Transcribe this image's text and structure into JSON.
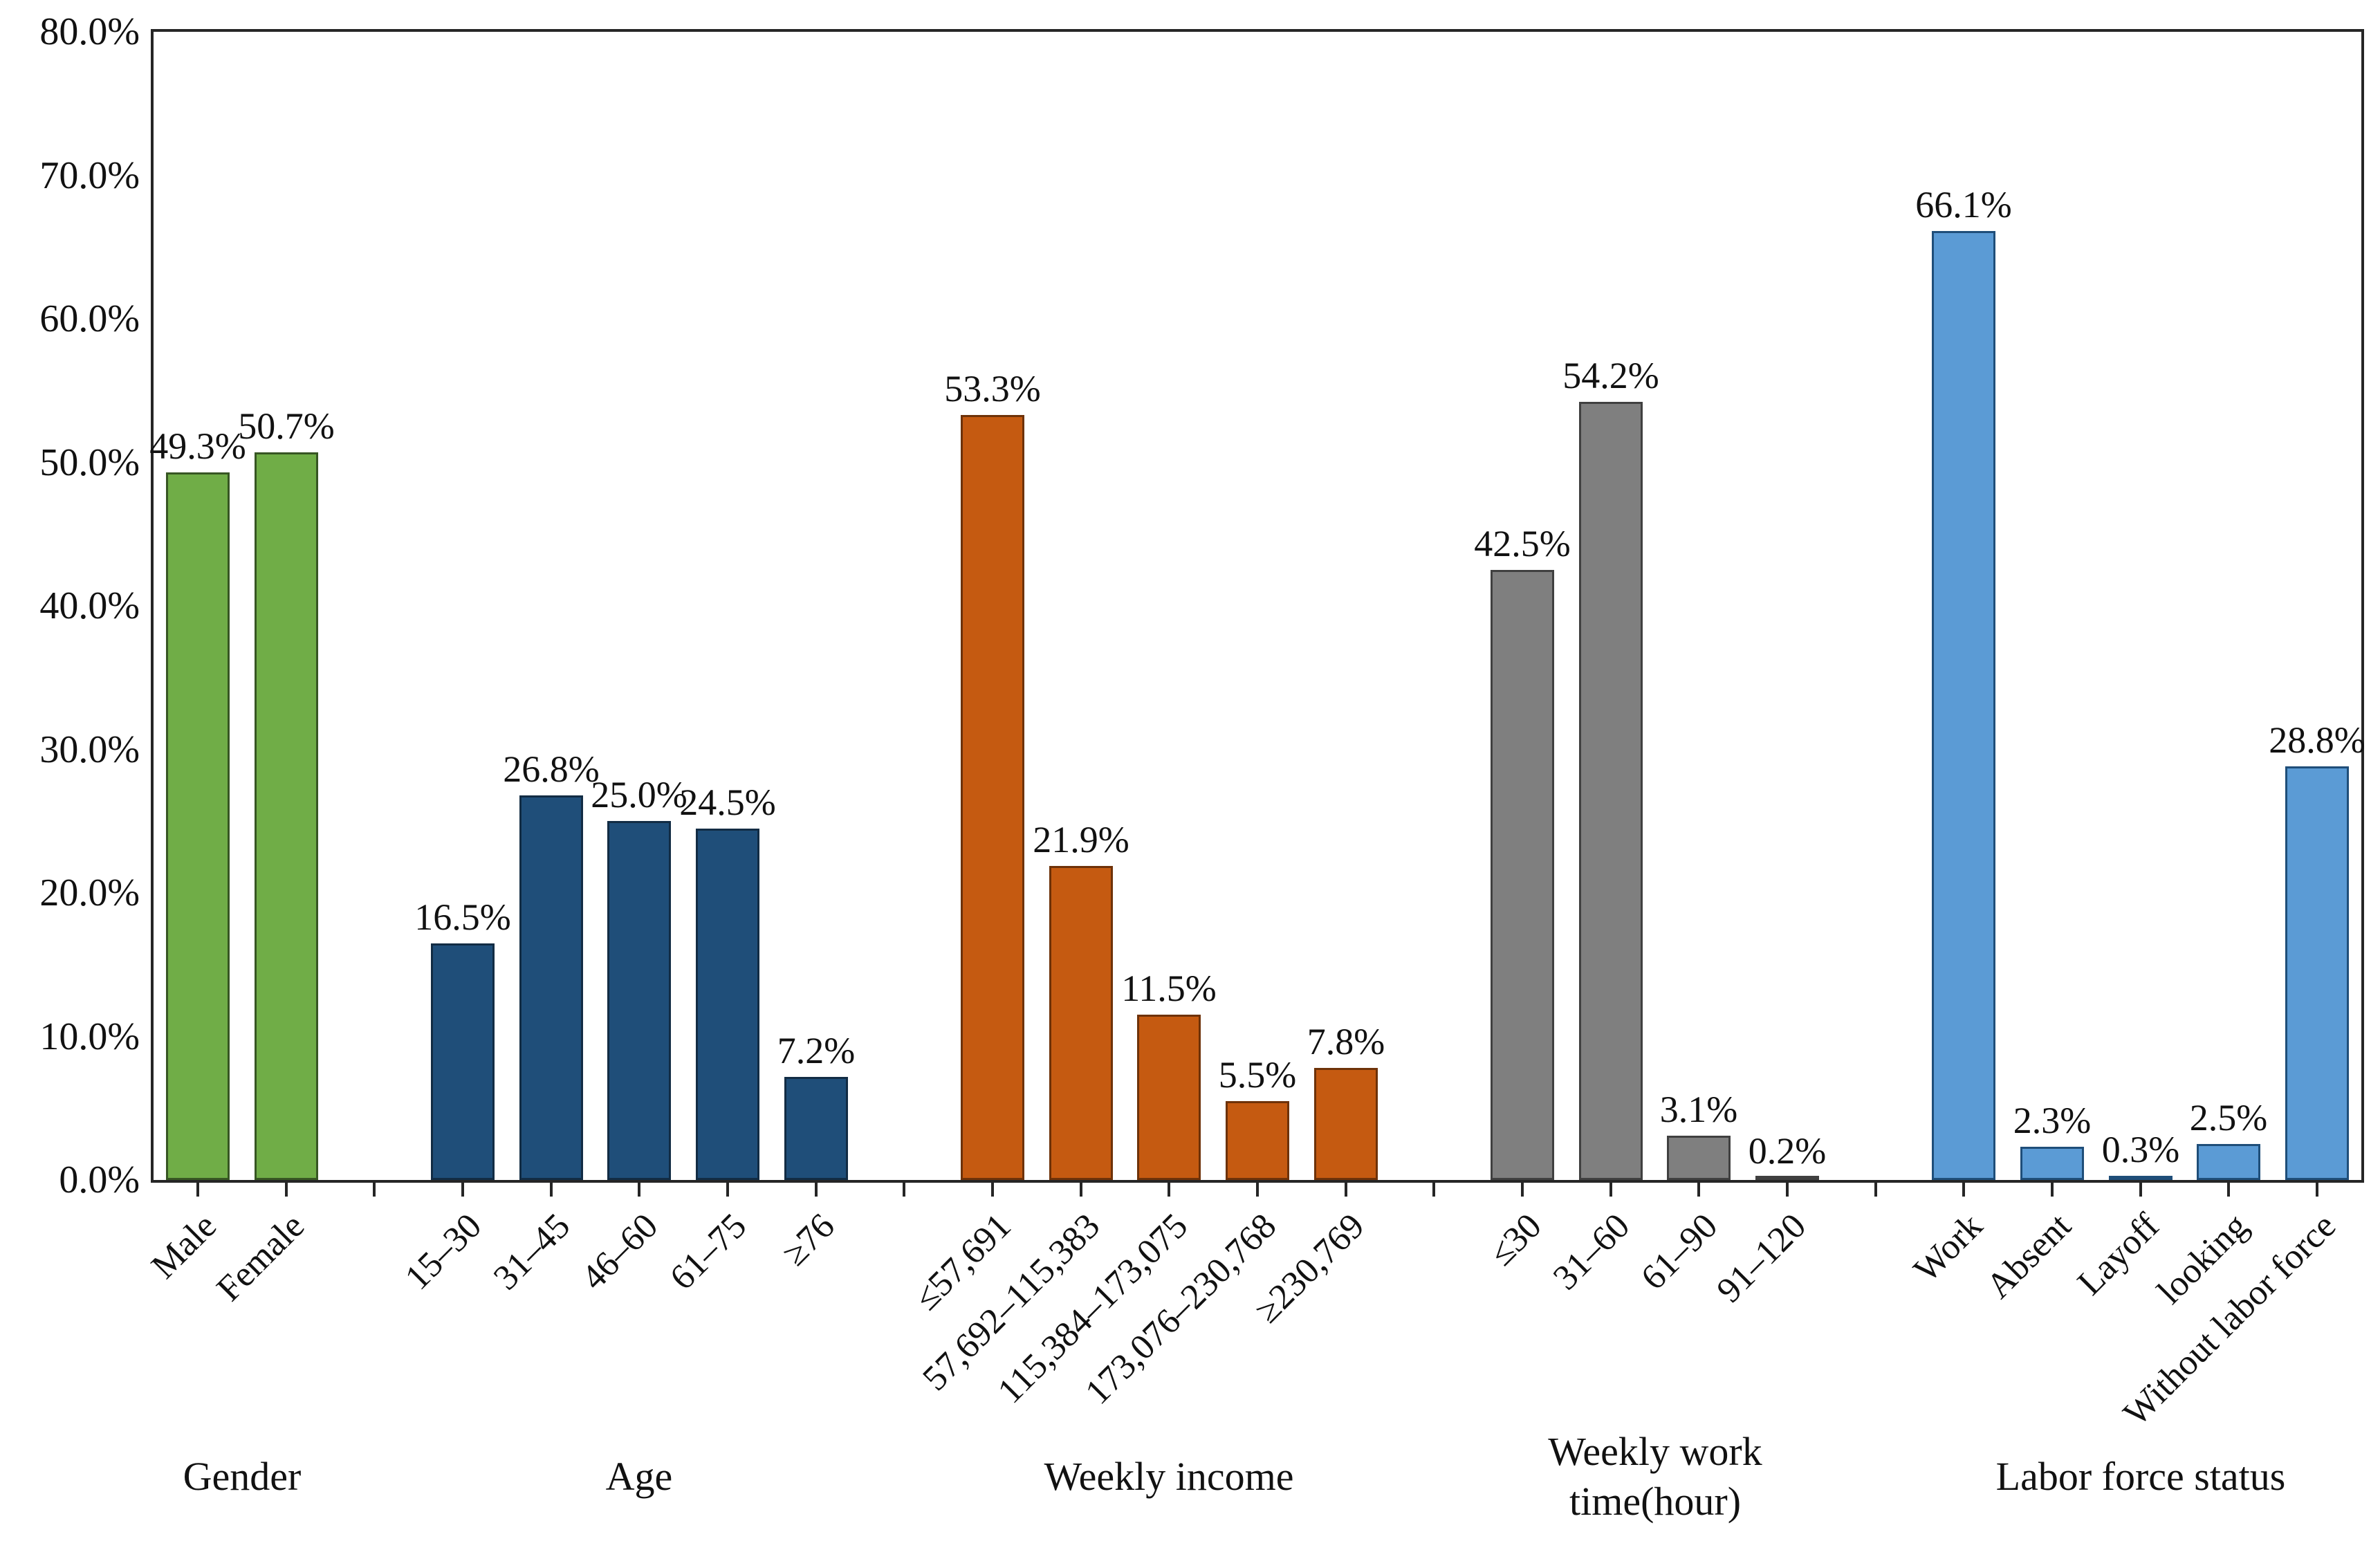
{
  "chart_data": {
    "type": "bar",
    "title": "",
    "xlabel": "",
    "ylabel": "",
    "ylim": [
      0,
      80
    ],
    "ytick_step": 10,
    "ytick_labels": [
      "0.0%",
      "10.0%",
      "20.0%",
      "30.0%",
      "40.0%",
      "50.0%",
      "60.0%",
      "70.0%",
      "80.0%"
    ],
    "grid": false,
    "legend": "none",
    "bar_label_format": "percent_one_decimal",
    "groups": [
      {
        "label": "Gender",
        "color": "#70AD47",
        "border_color": "#375623",
        "categories": [
          "Male",
          "Female"
        ],
        "values": [
          49.3,
          50.7
        ],
        "value_labels": [
          "49.3%",
          "50.7%"
        ]
      },
      {
        "label": "Age",
        "color": "#1F4E79",
        "border_color": "#122C44",
        "categories": [
          "15–30",
          "31–45",
          "46–60",
          "61–75",
          "≥76"
        ],
        "values": [
          16.5,
          26.8,
          25.0,
          24.5,
          7.2
        ],
        "value_labels": [
          "16.5%",
          "26.8%",
          "25.0%",
          "24.5%",
          "7.2%"
        ]
      },
      {
        "label": "Weekly income",
        "color": "#C55A11",
        "border_color": "#6E3209",
        "categories": [
          "≤57,691",
          "57,692–115,383",
          "115,384–173,075",
          "173,076–230,768",
          "≥230,769"
        ],
        "values": [
          53.3,
          21.9,
          11.5,
          5.5,
          7.8
        ],
        "value_labels": [
          "53.3%",
          "21.9%",
          "11.5%",
          "5.5%",
          "7.8%"
        ]
      },
      {
        "label": "Weekly work\ntime(hour)",
        "color": "#7F7F7F",
        "border_color": "#404040",
        "categories": [
          "≤30",
          "31–60",
          "61–90",
          "91–120"
        ],
        "values": [
          42.5,
          54.2,
          3.1,
          0.2
        ],
        "value_labels": [
          "42.5%",
          "54.2%",
          "3.1%",
          "0.2%"
        ]
      },
      {
        "label": "Labor force status",
        "color": "#5B9BD5",
        "border_color": "#1F4E79",
        "categories": [
          "Work",
          "Absent",
          "Layoff",
          "looking",
          "Without labor force"
        ],
        "values": [
          66.1,
          2.3,
          0.3,
          2.5,
          28.8
        ],
        "value_labels": [
          "66.1%",
          "2.3%",
          "0.3%",
          "2.5%",
          "28.8%"
        ]
      }
    ]
  }
}
